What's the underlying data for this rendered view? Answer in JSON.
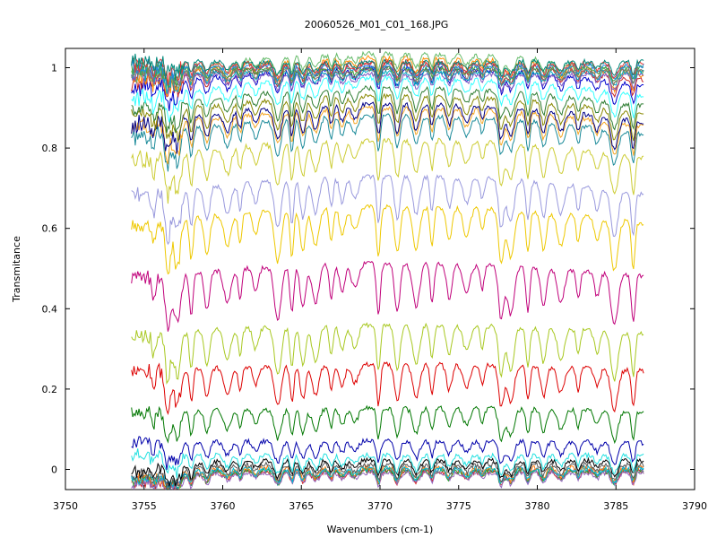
{
  "chart_data": {
    "type": "line",
    "title": "20060526_M01_C01_168.JPG",
    "xlabel": "Wavenumbers (cm-1)",
    "ylabel": "Transmitance",
    "xlim": [
      3750,
      3790
    ],
    "ylim": [
      -0.05,
      1.05
    ],
    "x_ticks": [
      "3750",
      "3755",
      "3760",
      "3765",
      "3770",
      "3775",
      "3780",
      "3785",
      "3790"
    ],
    "y_ticks": [
      "0",
      "0.2",
      "0.4",
      "0.6",
      "0.8",
      "1"
    ],
    "x_range": [
      3754.2,
      3786.8
    ],
    "absorption_lines": [
      3755.6,
      3756.5,
      3757.1,
      3758.0,
      3759.0,
      3760.3,
      3761.1,
      3762.1,
      3763.5,
      3764.4,
      3765.1,
      3765.9,
      3766.9,
      3767.6,
      3768.4,
      3769.9,
      3771.1,
      3772.3,
      3773.3,
      3774.4,
      3775.5,
      3776.5,
      3777.7,
      3778.3,
      3779.4,
      3780.4,
      3781.5,
      3782.6,
      3783.8,
      3784.9,
      3786.1
    ],
    "series": [
      {
        "color": "#1f77b4",
        "baseline": 0.0
      },
      {
        "color": "#d62728",
        "baseline": -0.005
      },
      {
        "color": "#2ca02c",
        "baseline": -0.003
      },
      {
        "color": "#ff7f0e",
        "baseline": 0.004
      },
      {
        "color": "#9467bd",
        "baseline": -0.008
      },
      {
        "color": "#00bcd4",
        "baseline": 0.002
      },
      {
        "color": "#555555",
        "baseline": 0.012
      },
      {
        "color": "#000000",
        "baseline": 0.022
      },
      {
        "color": "#22e0e0",
        "baseline": 0.035
      },
      {
        "color": "#0000aa",
        "baseline": 0.065
      },
      {
        "color": "#007700",
        "baseline": 0.14
      },
      {
        "color": "#dd0000",
        "baseline": 0.24
      },
      {
        "color": "#a8c820",
        "baseline": 0.33
      },
      {
        "color": "#c0007a",
        "baseline": 0.47
      },
      {
        "color": "#eec800",
        "baseline": 0.6
      },
      {
        "color": "#9999dd",
        "baseline": 0.67
      },
      {
        "color": "#cccc33",
        "baseline": 0.76
      },
      {
        "color": "#1a8a99",
        "baseline": 0.82
      },
      {
        "color": "#f5a623",
        "baseline": 0.84
      },
      {
        "color": "#000088",
        "baseline": 0.85
      },
      {
        "color": "#888800",
        "baseline": 0.87
      },
      {
        "color": "#2e7d32",
        "baseline": 0.89
      },
      {
        "color": "#33ffff",
        "baseline": 0.915
      },
      {
        "color": "#0000cc",
        "baseline": 0.94
      },
      {
        "color": "#c62828",
        "baseline": 0.955
      },
      {
        "color": "#ff8c00",
        "baseline": 0.965
      },
      {
        "color": "#66bb6a",
        "baseline": 0.975
      },
      {
        "color": "#7e57c2",
        "baseline": 0.983
      },
      {
        "color": "#00acc1",
        "baseline": 0.99
      },
      {
        "color": "#8d6e63",
        "baseline": 0.995
      },
      {
        "color": "#43a047",
        "baseline": 1.0
      },
      {
        "color": "#1e88e5",
        "baseline": 1.005
      },
      {
        "color": "#e53935",
        "baseline": 1.01
      },
      {
        "color": "#00897b",
        "baseline": 1.015
      }
    ]
  }
}
